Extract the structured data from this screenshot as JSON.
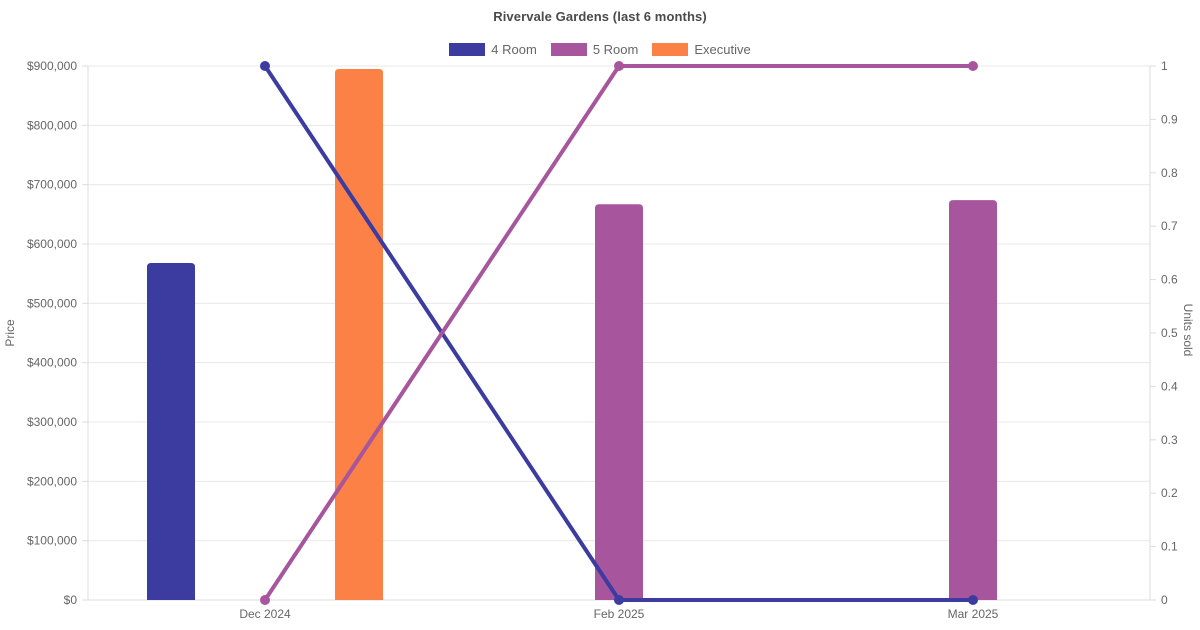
{
  "title": "Rivervale Gardens (last 6 months)",
  "chart_data": {
    "type": "bar+line",
    "title": "Rivervale Gardens (last 6 months)",
    "categories": [
      "Dec 2024",
      "Feb 2025",
      "Mar 2025"
    ],
    "bar_series": [
      {
        "name": "4 Room",
        "color": "#3c3ca0",
        "axis": "left",
        "values": [
          568000,
          null,
          null
        ]
      },
      {
        "name": "5 Room",
        "color": "#a7569e",
        "axis": "left",
        "values": [
          null,
          667000,
          674000
        ]
      },
      {
        "name": "Executive",
        "color": "#fb8146",
        "axis": "left",
        "values": [
          895000,
          null,
          null
        ]
      }
    ],
    "line_series": [
      {
        "name": "4 Room",
        "color": "#3c3ca0",
        "axis": "right",
        "values": [
          1,
          0,
          0
        ]
      },
      {
        "name": "5 Room",
        "color": "#a7569e",
        "axis": "right",
        "values": [
          0,
          1,
          1
        ]
      }
    ],
    "y_left": {
      "label": "Price",
      "min": 0,
      "max": 900000,
      "tick_labels": [
        "$0",
        "$100,000",
        "$200,000",
        "$300,000",
        "$400,000",
        "$500,000",
        "$600,000",
        "$700,000",
        "$800,000",
        "$900,000"
      ]
    },
    "y_right": {
      "label": "Units sold",
      "min": 0,
      "max": 1,
      "tick_labels": [
        "0",
        "0.1",
        "0.2",
        "0.3",
        "0.4",
        "0.5",
        "0.6",
        "0.7",
        "0.8",
        "0.9",
        "1"
      ]
    },
    "legend": [
      {
        "label": "4 Room",
        "color": "#3c3ca0"
      },
      {
        "label": "5 Room",
        "color": "#a7569e"
      },
      {
        "label": "Executive",
        "color": "#fb8146"
      }
    ],
    "legend_position": "top",
    "grid": true,
    "colors": {
      "grid_line": "#e8e8e8",
      "axis_line": "#dcdcdc",
      "tick_text": "#666666",
      "title_text": "#4a4a4a"
    }
  }
}
